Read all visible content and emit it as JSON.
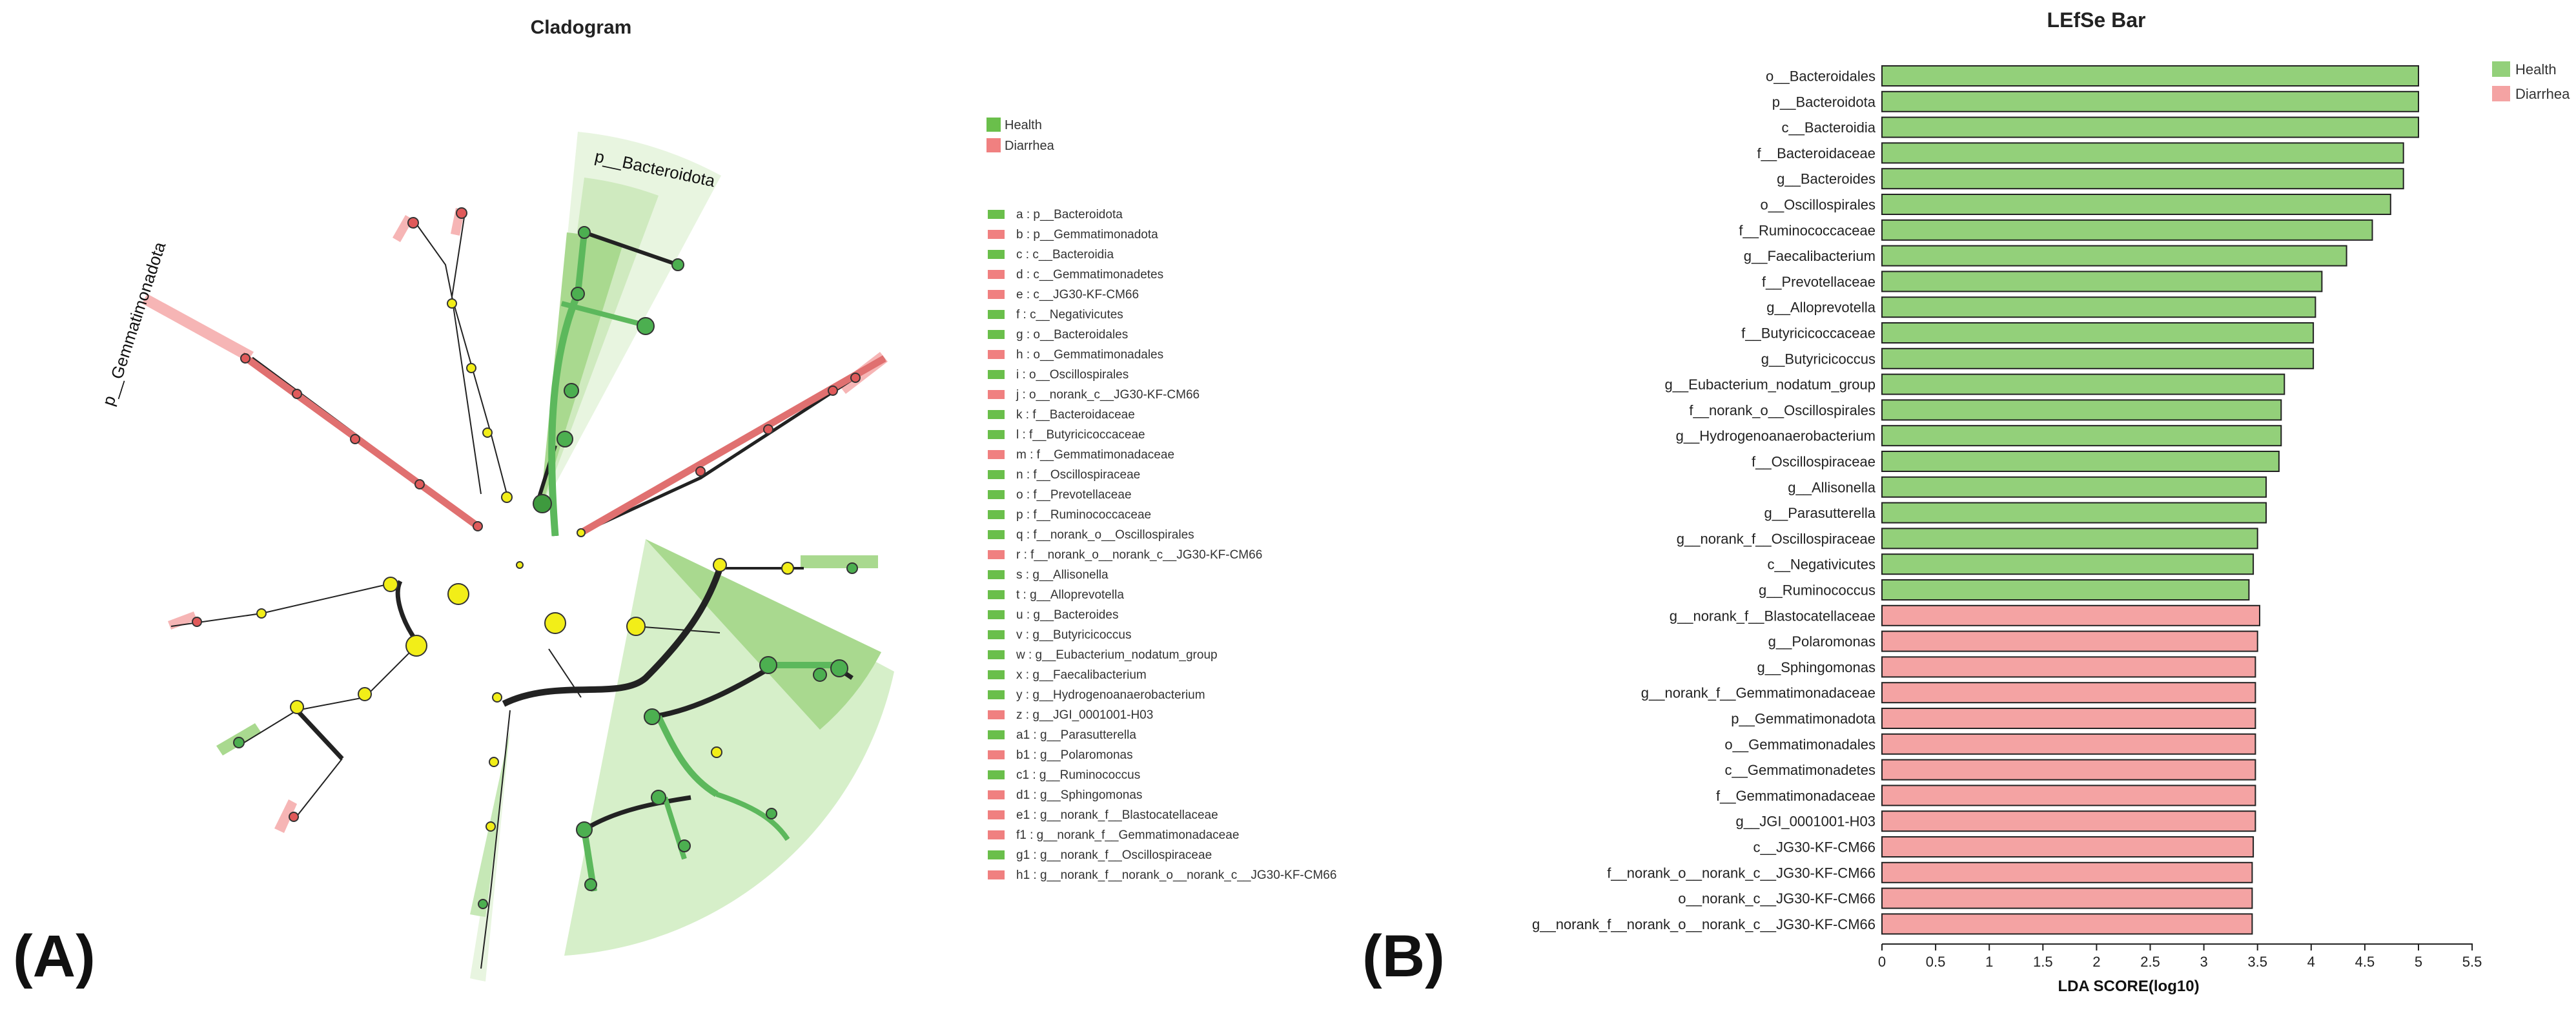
{
  "panel_a": {
    "label": "(A)",
    "title": "Cladogram",
    "legend": [
      {
        "name": "Health",
        "color": "#6abf4b"
      },
      {
        "name": "Diarrhea",
        "color": "#f08080"
      }
    ],
    "sector_labels": {
      "bacteroidota": "p__Bacteroidota",
      "gemmatimonadota": "p__Gemmatimonadota"
    },
    "keys": [
      {
        "key": "a : p__Bacteroidota",
        "group": "Health"
      },
      {
        "key": "b : p__Gemmatimonadota",
        "group": "Diarrhea"
      },
      {
        "key": "c : c__Bacteroidia",
        "group": "Health"
      },
      {
        "key": "d : c__Gemmatimonadetes",
        "group": "Diarrhea"
      },
      {
        "key": "e : c__JG30-KF-CM66",
        "group": "Diarrhea"
      },
      {
        "key": "f : c__Negativicutes",
        "group": "Health"
      },
      {
        "key": "g : o__Bacteroidales",
        "group": "Health"
      },
      {
        "key": "h : o__Gemmatimonadales",
        "group": "Diarrhea"
      },
      {
        "key": "i : o__Oscillospirales",
        "group": "Health"
      },
      {
        "key": "j : o__norank_c__JG30-KF-CM66",
        "group": "Diarrhea"
      },
      {
        "key": "k : f__Bacteroidaceae",
        "group": "Health"
      },
      {
        "key": "l : f__Butyricicoccaceae",
        "group": "Health"
      },
      {
        "key": "m : f__Gemmatimonadaceae",
        "group": "Diarrhea"
      },
      {
        "key": "n : f__Oscillospiraceae",
        "group": "Health"
      },
      {
        "key": "o : f__Prevotellaceae",
        "group": "Health"
      },
      {
        "key": "p : f__Ruminococcaceae",
        "group": "Health"
      },
      {
        "key": "q : f__norank_o__Oscillospirales",
        "group": "Health"
      },
      {
        "key": "r : f__norank_o__norank_c__JG30-KF-CM66",
        "group": "Diarrhea"
      },
      {
        "key": "s : g__Allisonella",
        "group": "Health"
      },
      {
        "key": "t : g__Alloprevotella",
        "group": "Health"
      },
      {
        "key": "u : g__Bacteroides",
        "group": "Health"
      },
      {
        "key": "v : g__Butyricicoccus",
        "group": "Health"
      },
      {
        "key": "w : g__Eubacterium_nodatum_group",
        "group": "Health"
      },
      {
        "key": "x : g__Faecalibacterium",
        "group": "Health"
      },
      {
        "key": "y : g__Hydrogenoanaerobacterium",
        "group": "Health"
      },
      {
        "key": "z : g__JGI_0001001-H03",
        "group": "Diarrhea"
      },
      {
        "key": "a1 : g__Parasutterella",
        "group": "Health"
      },
      {
        "key": "b1 : g__Polaromonas",
        "group": "Diarrhea"
      },
      {
        "key": "c1 : g__Ruminococcus",
        "group": "Health"
      },
      {
        "key": "d1 : g__Sphingomonas",
        "group": "Diarrhea"
      },
      {
        "key": "e1 : g__norank_f__Blastocatellaceae",
        "group": "Diarrhea"
      },
      {
        "key": "f1 : g__norank_f__Gemmatimonadaceae",
        "group": "Diarrhea"
      },
      {
        "key": "g1 : g__norank_f__Oscillospiraceae",
        "group": "Health"
      },
      {
        "key": "h1 : g__norank_f__norank_o__norank_c__JG30-KF-CM66",
        "group": "Diarrhea"
      }
    ]
  },
  "panel_b": {
    "label": "(B)"
  },
  "chart_data": {
    "type": "bar",
    "orientation": "horizontal",
    "title": "LEfSe Bar",
    "xlabel": "LDA SCORE(log10)",
    "ylabel": "",
    "xlim": [
      0,
      5.5
    ],
    "xticks": [
      "0",
      "0.5",
      "1",
      "1.5",
      "2",
      "2.5",
      "3",
      "3.5",
      "4",
      "4.5",
      "5",
      "5.5"
    ],
    "legend": [
      {
        "name": "Health",
        "color": "#93d07a"
      },
      {
        "name": "Diarrhea",
        "color": "#f4a3a3"
      }
    ],
    "series": [
      {
        "name": "Health",
        "color": "#93d07a",
        "categories": [
          "o__Bacteroidales",
          "p__Bacteroidota",
          "c__Bacteroidia",
          "f__Bacteroidaceae",
          "g__Bacteroides",
          "o__Oscillospirales",
          "f__Ruminococcaceae",
          "g__Faecalibacterium",
          "f__Prevotellaceae",
          "g__Alloprevotella",
          "f__Butyricicoccaceae",
          "g__Butyricicoccus",
          "g__Eubacterium_nodatum_group",
          "f__norank_o__Oscillospirales",
          "g__Hydrogenoanaerobacterium",
          "f__Oscillospiraceae",
          "g__Allisonella",
          "g__Parasutterella",
          "g__norank_f__Oscillospiraceae",
          "c__Negativicutes",
          "g__Ruminococcus"
        ],
        "values": [
          5.0,
          5.0,
          5.0,
          4.86,
          4.86,
          4.74,
          4.57,
          4.33,
          4.1,
          4.04,
          4.02,
          4.02,
          3.75,
          3.72,
          3.72,
          3.7,
          3.58,
          3.58,
          3.5,
          3.46,
          3.42
        ]
      },
      {
        "name": "Diarrhea",
        "color": "#f4a3a3",
        "categories": [
          "g__norank_f__Blastocatellaceae",
          "g__Polaromonas",
          "g__Sphingomonas",
          "g__norank_f__Gemmatimonadaceae",
          "p__Gemmatimonadota",
          "o__Gemmatimonadales",
          "c__Gemmatimonadetes",
          "f__Gemmatimonadaceae",
          "g__JGI_0001001-H03",
          "c__JG30-KF-CM66",
          "f__norank_o__norank_c__JG30-KF-CM66",
          "o__norank_c__JG30-KF-CM66",
          "g__norank_f__norank_o__norank_c__JG30-KF-CM66"
        ],
        "values": [
          3.52,
          3.5,
          3.48,
          3.48,
          3.48,
          3.48,
          3.48,
          3.48,
          3.48,
          3.46,
          3.45,
          3.45,
          3.45
        ]
      }
    ]
  }
}
